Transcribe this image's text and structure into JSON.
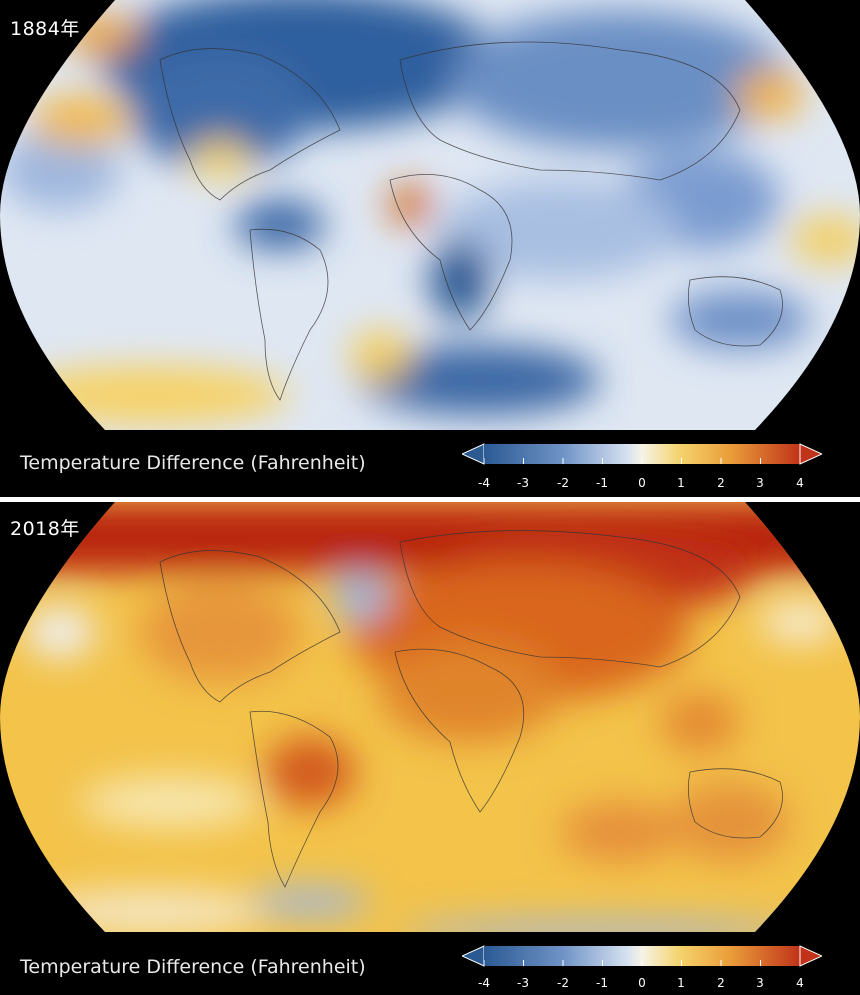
{
  "panels": [
    {
      "year_label": "1884年",
      "legend_title": "Temperature Difference (Fahrenheit)",
      "scale_ticks": [
        "-4",
        "-3",
        "-2",
        "-1",
        "0",
        "1",
        "2",
        "3",
        "4"
      ],
      "anomaly_mood": "cool"
    },
    {
      "year_label": "2018年",
      "legend_title": "Temperature Difference (Fahrenheit)",
      "scale_ticks": [
        "-4",
        "-3",
        "-2",
        "-1",
        "0",
        "1",
        "2",
        "3",
        "4"
      ],
      "anomaly_mood": "warm"
    }
  ],
  "colors": {
    "very_cold": "#2b5a93",
    "cold": "#6f93c6",
    "cool": "#c9d7ec",
    "neutral": "#f6f3e6",
    "warm": "#f4c64a",
    "hot": "#e0822c",
    "very_hot": "#b71a0c"
  }
}
